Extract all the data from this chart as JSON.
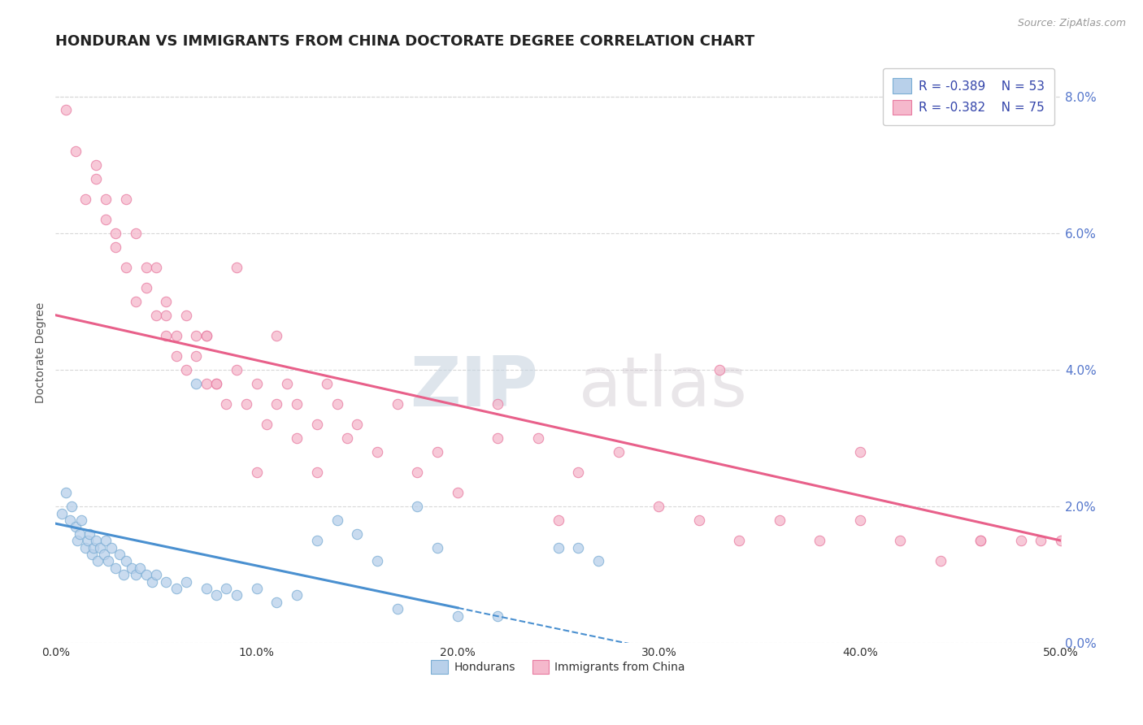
{
  "title": "HONDURAN VS IMMIGRANTS FROM CHINA DOCTORATE DEGREE CORRELATION CHART",
  "source_text": "Source: ZipAtlas.com",
  "ylabel": "Doctorate Degree",
  "xlim": [
    0.0,
    50.0
  ],
  "ylim": [
    0.0,
    8.5
  ],
  "xticks": [
    0.0,
    10.0,
    20.0,
    30.0,
    40.0,
    50.0
  ],
  "yticks_right": [
    0.0,
    2.0,
    4.0,
    6.0,
    8.0
  ],
  "blue_fill_color": "#b8d0ea",
  "blue_edge_color": "#7aadd4",
  "pink_fill_color": "#f5b8cc",
  "pink_edge_color": "#e87aa0",
  "blue_line_color": "#4a90d0",
  "pink_line_color": "#e8608a",
  "right_tick_color": "#5577cc",
  "legend_blue_r": "R = -0.389",
  "legend_blue_n": "N = 53",
  "legend_pink_r": "R = -0.382",
  "legend_pink_n": "N = 75",
  "watermark_zip": "ZIP",
  "watermark_atlas": "atlas",
  "blue_scatter_x": [
    0.3,
    0.5,
    0.7,
    0.8,
    1.0,
    1.1,
    1.2,
    1.3,
    1.5,
    1.6,
    1.7,
    1.8,
    1.9,
    2.0,
    2.1,
    2.2,
    2.4,
    2.5,
    2.6,
    2.8,
    3.0,
    3.2,
    3.4,
    3.5,
    3.8,
    4.0,
    4.2,
    4.5,
    4.8,
    5.0,
    5.5,
    6.0,
    6.5,
    7.0,
    7.5,
    8.0,
    8.5,
    9.0,
    10.0,
    11.0,
    12.0,
    13.0,
    14.0,
    15.0,
    16.0,
    17.0,
    18.0,
    19.0,
    20.0,
    22.0,
    25.0,
    26.0,
    27.0
  ],
  "blue_scatter_y": [
    1.9,
    2.2,
    1.8,
    2.0,
    1.7,
    1.5,
    1.6,
    1.8,
    1.4,
    1.5,
    1.6,
    1.3,
    1.4,
    1.5,
    1.2,
    1.4,
    1.3,
    1.5,
    1.2,
    1.4,
    1.1,
    1.3,
    1.0,
    1.2,
    1.1,
    1.0,
    1.1,
    1.0,
    0.9,
    1.0,
    0.9,
    0.8,
    0.9,
    3.8,
    0.8,
    0.7,
    0.8,
    0.7,
    0.8,
    0.6,
    0.7,
    1.5,
    1.8,
    1.6,
    1.2,
    0.5,
    2.0,
    1.4,
    0.4,
    0.4,
    1.4,
    1.4,
    1.2
  ],
  "pink_scatter_x": [
    0.5,
    1.0,
    1.5,
    2.0,
    2.0,
    2.5,
    2.5,
    3.0,
    3.0,
    3.5,
    3.5,
    4.0,
    4.0,
    4.5,
    4.5,
    5.0,
    5.0,
    5.5,
    5.5,
    5.5,
    6.0,
    6.0,
    6.5,
    6.5,
    7.0,
    7.0,
    7.5,
    7.5,
    8.0,
    8.5,
    9.0,
    9.5,
    10.0,
    10.5,
    11.0,
    11.5,
    12.0,
    12.0,
    13.0,
    13.5,
    14.0,
    14.5,
    15.0,
    16.0,
    17.0,
    18.0,
    19.0,
    20.0,
    22.0,
    24.0,
    26.0,
    28.0,
    30.0,
    32.0,
    34.0,
    36.0,
    38.0,
    40.0,
    42.0,
    44.0,
    46.0,
    48.0,
    49.0,
    50.0,
    7.5,
    8.0,
    9.0,
    10.0,
    11.0,
    13.0,
    22.0,
    25.0,
    33.0,
    40.0,
    46.0
  ],
  "pink_scatter_y": [
    7.8,
    7.2,
    6.5,
    7.0,
    6.8,
    6.5,
    6.2,
    6.0,
    5.8,
    6.5,
    5.5,
    6.0,
    5.0,
    5.5,
    5.2,
    5.5,
    4.8,
    5.0,
    4.5,
    4.8,
    4.5,
    4.2,
    4.8,
    4.0,
    4.5,
    4.2,
    3.8,
    4.5,
    3.8,
    3.5,
    4.0,
    3.5,
    3.8,
    3.2,
    3.5,
    3.8,
    3.0,
    3.5,
    3.2,
    3.8,
    3.5,
    3.0,
    3.2,
    2.8,
    3.5,
    2.5,
    2.8,
    2.2,
    3.5,
    3.0,
    2.5,
    2.8,
    2.0,
    1.8,
    1.5,
    1.8,
    1.5,
    1.8,
    1.5,
    1.2,
    1.5,
    1.5,
    1.5,
    1.5,
    4.5,
    3.8,
    5.5,
    2.5,
    4.5,
    2.5,
    3.0,
    1.8,
    4.0,
    2.8,
    1.5
  ],
  "blue_line_x0": 0.0,
  "blue_line_x1": 30.0,
  "blue_line_y0": 1.75,
  "blue_line_y1": -0.1,
  "blue_line_dashed_x0": 20.0,
  "blue_line_dashed_x1": 30.0,
  "pink_line_x0": 0.0,
  "pink_line_x1": 50.0,
  "pink_line_y0": 4.8,
  "pink_line_y1": 1.5,
  "grid_color": "#d8d8d8",
  "background_color": "#ffffff",
  "title_fontsize": 13,
  "axis_fontsize": 10,
  "legend_fontsize": 11,
  "scatter_size": 80
}
